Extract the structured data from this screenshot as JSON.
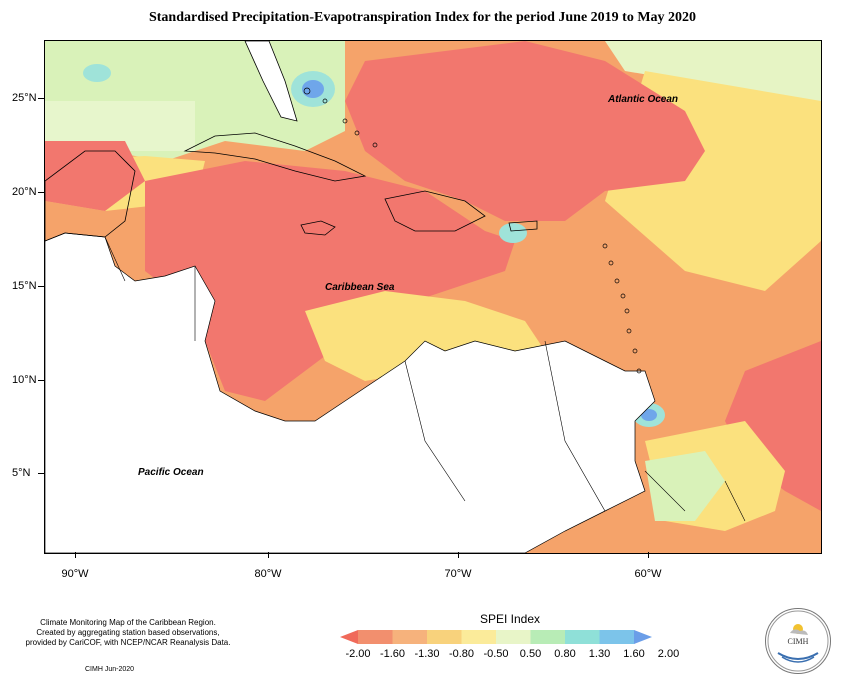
{
  "title": "Standardised Precipitation-Evapotranspiration Index for the period June 2019 to May 2020",
  "map": {
    "x_ticks": [
      "90°W",
      "80°W",
      "70°W",
      "60°W"
    ],
    "y_ticks": [
      "25°N",
      "20°N",
      "15°N",
      "10°N",
      "5°N"
    ],
    "ocean_labels": {
      "atlantic": "Atlantic Ocean",
      "caribbean": "Caribbean Sea",
      "pacific": "Pacific Ocean"
    }
  },
  "legend": {
    "title": "SPEI Index",
    "ticks": [
      "-2.00",
      "-1.60",
      "-1.30",
      "-0.80",
      "-0.50",
      "0.50",
      "0.80",
      "1.30",
      "1.60",
      "2.00"
    ],
    "colors": [
      "#f06a5a",
      "#f28f6e",
      "#f6b27c",
      "#f8d27c",
      "#fbeb9a",
      "#e8f5c8",
      "#b8ecb6",
      "#8fe0d8",
      "#7cc4ea",
      "#6b9ee8"
    ]
  },
  "colors": {
    "dry_extreme": "#f2776e",
    "dry_severe": "#f5a36a",
    "dry_moderate": "#fbe17e",
    "near_normal": "#fff6b0",
    "wet_mild": "#d9f2b9",
    "wet_moderate": "#9fe3d9",
    "wet_strong": "#6fa6ea",
    "land": "#ffffff"
  },
  "footnote": {
    "lines": [
      "Climate Monitoring Map of the Caribbean Region.",
      "Created by aggregating station based observations,",
      "provided by CariCOF, with NCEP/NCAR Reanalysis Data."
    ],
    "date": "CIMH  Jun-2020"
  },
  "logo": {
    "text": "CIMH"
  }
}
